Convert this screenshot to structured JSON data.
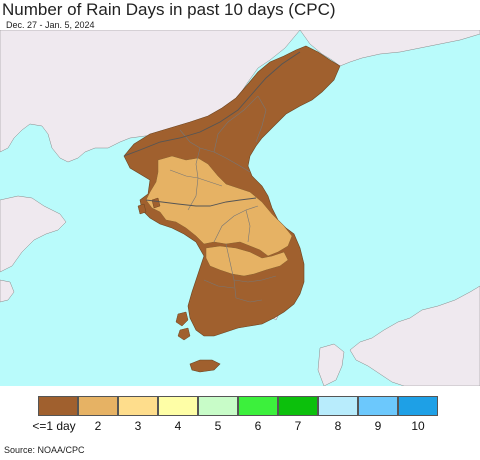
{
  "header": {
    "title": "Number of Rain Days in past 10 days (CPC)",
    "date_range": "Dec. 27 - Jan. 5, 2024"
  },
  "legend": {
    "items": [
      {
        "label": "<=1 day",
        "color": "#a0602e"
      },
      {
        "label": "2",
        "color": "#e6b264"
      },
      {
        "label": "3",
        "color": "#fedd8c"
      },
      {
        "label": "4",
        "color": "#fefea6"
      },
      {
        "label": "5",
        "color": "#c8fcc8"
      },
      {
        "label": "6",
        "color": "#3cf03c"
      },
      {
        "label": "7",
        "color": "#0cc00c"
      },
      {
        "label": "8",
        "color": "#b8ecfc"
      },
      {
        "label": "9",
        "color": "#6cc8fc"
      },
      {
        "label": "10",
        "color": "#1ea0e6"
      }
    ]
  },
  "colors": {
    "ocean": "#b9fbfb",
    "land_no_data": "#efe9ef",
    "boundary": "#777777"
  },
  "footer": {
    "source": "Source: NOAA/CPC"
  }
}
